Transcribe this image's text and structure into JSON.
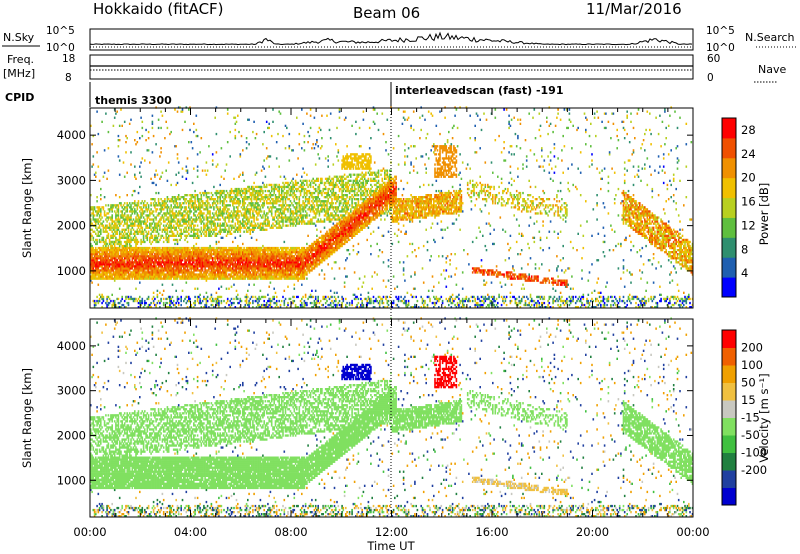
{
  "header": {
    "station": "Hokkaido (fitACF)",
    "beam": "Beam 06",
    "date": "11/Mar/2016"
  },
  "top_panels": {
    "nsky_label": "N.Sky",
    "nsky_ticks": [
      "10^5",
      "10^0"
    ],
    "nsearch_label": "N.Search",
    "nsearch_ticks_right": [
      "10^5",
      "10^0"
    ],
    "freq_label": "Freq.",
    "freq_unit": "[MHz]",
    "freq_ticks": [
      "18",
      "8"
    ],
    "nave_label": "Nave",
    "nave_ticks": [
      "60",
      "0"
    ],
    "cpid_label": "CPID",
    "cpid_modes": [
      {
        "label": "themis 3300",
        "start_hour": 0,
        "end_hour": 12
      },
      {
        "label": "interleavedscan (fast) -191",
        "start_hour": 12,
        "end_hour": 24
      }
    ]
  },
  "chart_data": [
    {
      "type": "heatmap",
      "name": "power",
      "ylabel": "Slant Range [km]",
      "xlabel": "",
      "xlim": [
        0,
        24
      ],
      "ylim": [
        180,
        4600
      ],
      "yticks": [
        "1000",
        "2000",
        "3000",
        "4000"
      ],
      "colorbar": {
        "label": "Power [dB]",
        "ticks": [
          "4",
          "8",
          "12",
          "16",
          "20",
          "24",
          "28"
        ],
        "range": [
          0,
          30
        ],
        "colors": [
          "#0000ff",
          "#1f5fb0",
          "#2f8f6f",
          "#5fbf3f",
          "#b8d020",
          "#f0c000",
          "#f09000",
          "#f05000",
          "#ff0000"
        ]
      }
    },
    {
      "type": "heatmap",
      "name": "velocity",
      "ylabel": "Slant Range [km]",
      "xlabel": "Time UT",
      "xlim": [
        0,
        24
      ],
      "ylim": [
        180,
        4600
      ],
      "yticks": [
        "1000",
        "2000",
        "3000",
        "4000"
      ],
      "xticks": [
        "00:00",
        "04:00",
        "08:00",
        "12:00",
        "16:00",
        "20:00",
        "00:00"
      ],
      "colorbar": {
        "label": "Velocity [m s⁻¹]",
        "ticks": [
          "200",
          "100",
          "50",
          "15",
          "-15",
          "-50",
          "-100",
          "-200"
        ],
        "colors": [
          "#0000d0",
          "#2040a0",
          "#208040",
          "#40c040",
          "#80e060",
          "#c8c8c0",
          "#f0c040",
          "#f0a000",
          "#f06000",
          "#ff0000"
        ]
      }
    }
  ]
}
